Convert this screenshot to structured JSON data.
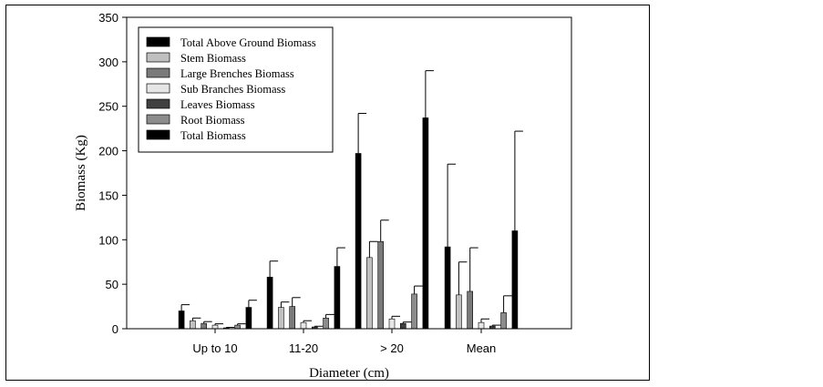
{
  "chart_data": {
    "type": "bar",
    "title": "",
    "xlabel": "Diameter (cm)",
    "ylabel": "Biomass (Kg)",
    "ylim": [
      0,
      350
    ],
    "yticks": [
      0,
      50,
      100,
      150,
      200,
      250,
      300,
      350
    ],
    "categories": [
      "Up to 10",
      "11-20",
      "> 20",
      "Mean"
    ],
    "legend_position": "top-left",
    "series": [
      {
        "name": "Total Above Ground Biomass",
        "color": "#000000",
        "values": [
          20,
          58,
          197,
          92
        ],
        "errors": [
          7,
          18,
          45,
          93
        ]
      },
      {
        "name": "Stem Biomass",
        "color": "#c0c0c0",
        "values": [
          9,
          24,
          80,
          38
        ],
        "errors": [
          3,
          6,
          18,
          37
        ]
      },
      {
        "name": "Large Brenches Biomass",
        "color": "#7a7a7a",
        "values": [
          6,
          25,
          98,
          42
        ],
        "errors": [
          2,
          10,
          24,
          49
        ]
      },
      {
        "name": "Sub Branches Biomass",
        "color": "#e6e6e6",
        "values": [
          4,
          7,
          11,
          7
        ],
        "errors": [
          1.5,
          2,
          3,
          4
        ]
      },
      {
        "name": "Leaves Biomass",
        "color": "#404040",
        "values": [
          1,
          2,
          6,
          3
        ],
        "errors": [
          0.5,
          0.8,
          1.5,
          1
        ]
      },
      {
        "name": "Root Biomass",
        "color": "#8c8c8c",
        "values": [
          4,
          12,
          39,
          18
        ],
        "errors": [
          1.5,
          4,
          9,
          19
        ]
      },
      {
        "name": "Total Biomass",
        "color": "#000000",
        "values": [
          24,
          70,
          237,
          110
        ],
        "errors": [
          8,
          21,
          53,
          112
        ]
      }
    ]
  }
}
